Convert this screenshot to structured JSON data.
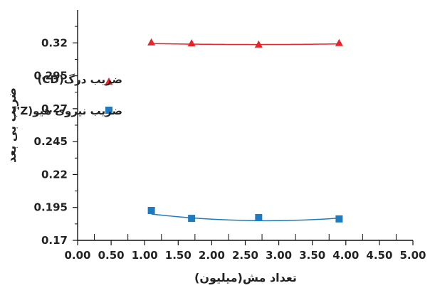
{
  "chart_data": {
    "type": "scatter",
    "xlabel": "تعداد مش(میلیون)",
    "ylabel": "ضریب بی بعد",
    "xlim": [
      0,
      5
    ],
    "ylim": [
      0.17,
      0.345
    ],
    "x_ticks": [
      "0.00",
      "0.50",
      "1.00",
      "1.50",
      "2.00",
      "2.50",
      "3.00",
      "3.50",
      "4.00",
      "4.50",
      "5.00"
    ],
    "y_ticks": [
      "0.17",
      "0.195",
      "0.22",
      "0.245",
      "0.27",
      "0.295",
      "0.32"
    ],
    "x_tick_values": [
      0,
      0.5,
      1,
      1.5,
      2,
      2.5,
      3,
      3.5,
      4,
      4.5,
      5
    ],
    "y_tick_values": [
      0.17,
      0.195,
      0.22,
      0.245,
      0.27,
      0.295,
      0.32
    ],
    "legend_position": "left",
    "series": [
      {
        "name": "ضریب درگ(CD)",
        "marker": "triangle",
        "color": "#e8232a",
        "x": [
          1.1,
          1.7,
          2.7,
          3.9
        ],
        "y": [
          0.3205,
          0.3198,
          0.3189,
          0.32
        ],
        "trendline": [
          0.3209,
          -0.0016,
          0.0003
        ]
      },
      {
        "name": "ضریب نیروی هیو(Z')",
        "marker": "square",
        "color": "#1f7bc1",
        "x": [
          1.1,
          1.7,
          2.7,
          3.9
        ],
        "y": [
          0.1927,
          0.1867,
          0.1873,
          0.1863
        ],
        "trendline": [
          0.1985,
          -0.0096,
          0.0017
        ]
      }
    ]
  }
}
